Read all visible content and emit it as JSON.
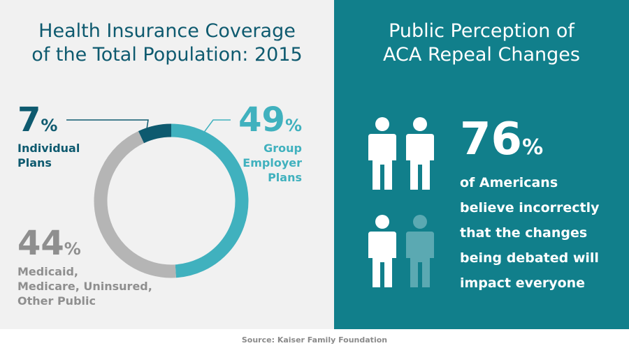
{
  "chart_data": {
    "type": "donut",
    "title": "Health Insurance Coverage\nof the Total Population: 2015",
    "categories": [
      "Group\nEmployer\nPlans",
      "Medicaid,\nMedicare, Uninsured,\nOther Public",
      "Individual\nPlans"
    ],
    "values": [
      49,
      44,
      7
    ],
    "value_unit": "%",
    "colors": [
      "#40b1be",
      "#b5b5b5",
      "#0e5a6f"
    ],
    "label_colors": [
      "#40b1be",
      "#8f8f8f",
      "#0e5a6f"
    ]
  },
  "perception": {
    "title": "Public Perception of\nACA Repeal Changes",
    "value": 76,
    "unit": "%",
    "text": "of Americans\nbelieve incorrectly\nthat the changes\nbeing debated will\nimpact everyone"
  },
  "source": "Source: Kaiser Family Foundation"
}
